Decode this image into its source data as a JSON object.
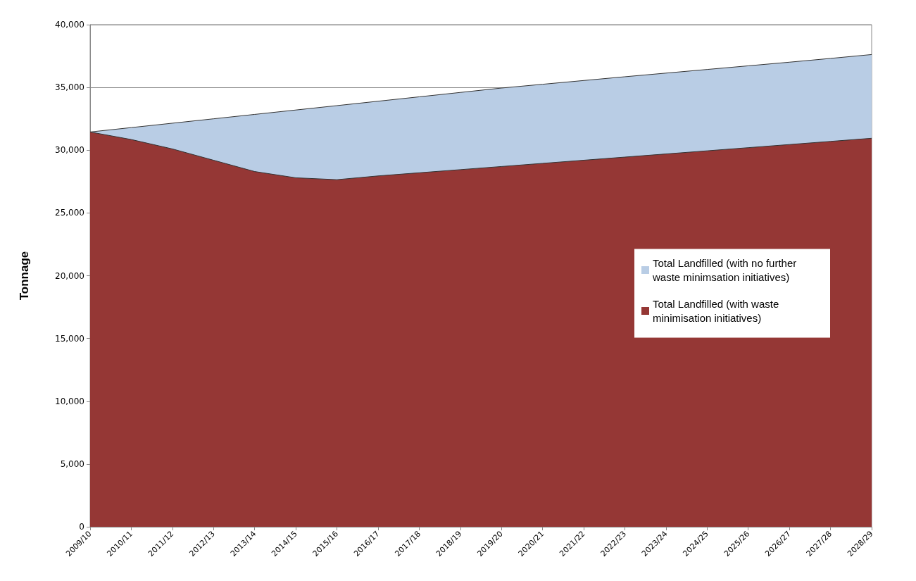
{
  "chart_data": {
    "type": "area",
    "ylabel": "Tonnage",
    "categories": [
      "2009/10",
      "2010/11",
      "2011/12",
      "2012/13",
      "2013/14",
      "2014/15",
      "2015/16",
      "2016/17",
      "2017/18",
      "2018/19",
      "2019/20",
      "2020/21",
      "2021/22",
      "2022/23",
      "2023/24",
      "2024/25",
      "2025/26",
      "2026/27",
      "2027/28",
      "2028/29"
    ],
    "series": [
      {
        "name": "Total Landfilled (with no further waste minimsation initiatives)",
        "color": "#b9cde5",
        "values": [
          31450,
          31800,
          32150,
          32500,
          32850,
          33200,
          33550,
          33900,
          34250,
          34600,
          34950,
          35250,
          35550,
          35850,
          36140,
          36430,
          36720,
          37010,
          37310,
          37620
        ]
      },
      {
        "name": "Total Landfilled (with waste minimisation initiatives)",
        "color": "#953735",
        "values": [
          31450,
          30850,
          30100,
          29200,
          28300,
          27800,
          27650,
          27950,
          28200,
          28450,
          28700,
          28950,
          29200,
          29450,
          29700,
          29950,
          30200,
          30450,
          30700,
          30950
        ]
      }
    ],
    "ylim": [
      0,
      40000
    ],
    "yticks": [
      {
        "value": 0,
        "label": "0"
      },
      {
        "value": 5000,
        "label": "5,000"
      },
      {
        "value": 10000,
        "label": "10,000"
      },
      {
        "value": 15000,
        "label": "15,000"
      },
      {
        "value": 20000,
        "label": "20,000"
      },
      {
        "value": 25000,
        "label": "25,000"
      },
      {
        "value": 30000,
        "label": "30,000"
      },
      {
        "value": 35000,
        "label": "35,000"
      },
      {
        "value": 40000,
        "label": "40,000"
      }
    ],
    "grid": "y",
    "legend": "right"
  }
}
